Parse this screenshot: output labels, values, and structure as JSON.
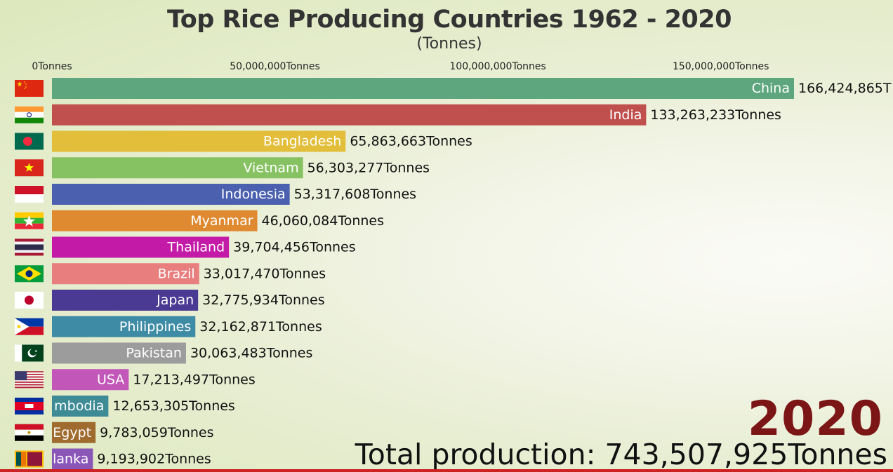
{
  "chart_data": {
    "type": "bar",
    "orientation": "horizontal",
    "title": "Top Rice Producing Countries 1962 - 2020",
    "subtitle": "(Tonnes)",
    "unit": "Tonnes",
    "xlim": [
      0,
      166424865
    ],
    "ticks": [
      {
        "value": 0,
        "label": "0Tonnes"
      },
      {
        "value": 50000000,
        "label": "50,000,000Tonnes"
      },
      {
        "value": 100000000,
        "label": "100,000,000Tonnes"
      },
      {
        "value": 150000000,
        "label": "150,000,000Tonnes"
      }
    ],
    "bars": [
      {
        "category": "China",
        "display_label": "China",
        "value": 166424865,
        "value_label": "166,424,865T",
        "color": "#5ea67e",
        "flag": "flag-china"
      },
      {
        "category": "India",
        "display_label": "India",
        "value": 133263233,
        "value_label": "133,263,233Tonnes",
        "color": "#c0504d",
        "flag": "flag-india"
      },
      {
        "category": "Bangladesh",
        "display_label": "Bangladesh",
        "value": 65863663,
        "value_label": "65,863,663Tonnes",
        "color": "#e2be3a",
        "flag": "flag-bangladesh"
      },
      {
        "category": "Vietnam",
        "display_label": "Vietnam",
        "value": 56303277,
        "value_label": "56,303,277Tonnes",
        "color": "#86c262",
        "flag": "flag-vietnam"
      },
      {
        "category": "Indonesia",
        "display_label": "Indonesia",
        "value": 53317608,
        "value_label": "53,317,608Tonnes",
        "color": "#4b61b0",
        "flag": "flag-indonesia"
      },
      {
        "category": "Myanmar",
        "display_label": "Myanmar",
        "value": 46060084,
        "value_label": "46,060,084Tonnes",
        "color": "#df8a30",
        "flag": "flag-myanmar"
      },
      {
        "category": "Thailand",
        "display_label": "Thailand",
        "value": 39704456,
        "value_label": "39,704,456Tonnes",
        "color": "#c31ba7",
        "flag": "flag-thailand"
      },
      {
        "category": "Brazil",
        "display_label": "Brazil",
        "value": 33017470,
        "value_label": "33,017,470Tonnes",
        "color": "#e97e7e",
        "flag": "flag-brazil"
      },
      {
        "category": "Japan",
        "display_label": "Japan",
        "value": 32775934,
        "value_label": "32,775,934Tonnes",
        "color": "#4b3a93",
        "flag": "flag-japan"
      },
      {
        "category": "Philippines",
        "display_label": "Philippines",
        "value": 32162871,
        "value_label": "32,162,871Tonnes",
        "color": "#3e8ba6",
        "flag": "flag-philippines"
      },
      {
        "category": "Pakistan",
        "display_label": "Pakistan",
        "value": 30063483,
        "value_label": "30,063,483Tonnes",
        "color": "#9c9c9c",
        "flag": "flag-pakistan"
      },
      {
        "category": "USA",
        "display_label": "USA",
        "value": 17213497,
        "value_label": "17,213,497Tonnes",
        "color": "#c257b9",
        "flag": "flag-usa"
      },
      {
        "category": "Cambodia",
        "display_label": "mbodia",
        "value": 12653305,
        "value_label": "12,653,305Tonnes",
        "color": "#3e8b95",
        "flag": "flag-cambodia"
      },
      {
        "category": "Egypt",
        "display_label": "Egypt",
        "value": 9783059,
        "value_label": "9,783,059Tonnes",
        "color": "#9f6b2e",
        "flag": "flag-egypt"
      },
      {
        "category": "Sri Lanka",
        "display_label": "lanka",
        "value": 9193902,
        "value_label": "9,193,902Tonnes",
        "color": "#8a56b8",
        "flag": "flag-sri-lanka"
      }
    ]
  },
  "overlay": {
    "year": "2020",
    "total_text": "Total production: 743,507,925Tonnes",
    "year_color": "#7c1616"
  }
}
